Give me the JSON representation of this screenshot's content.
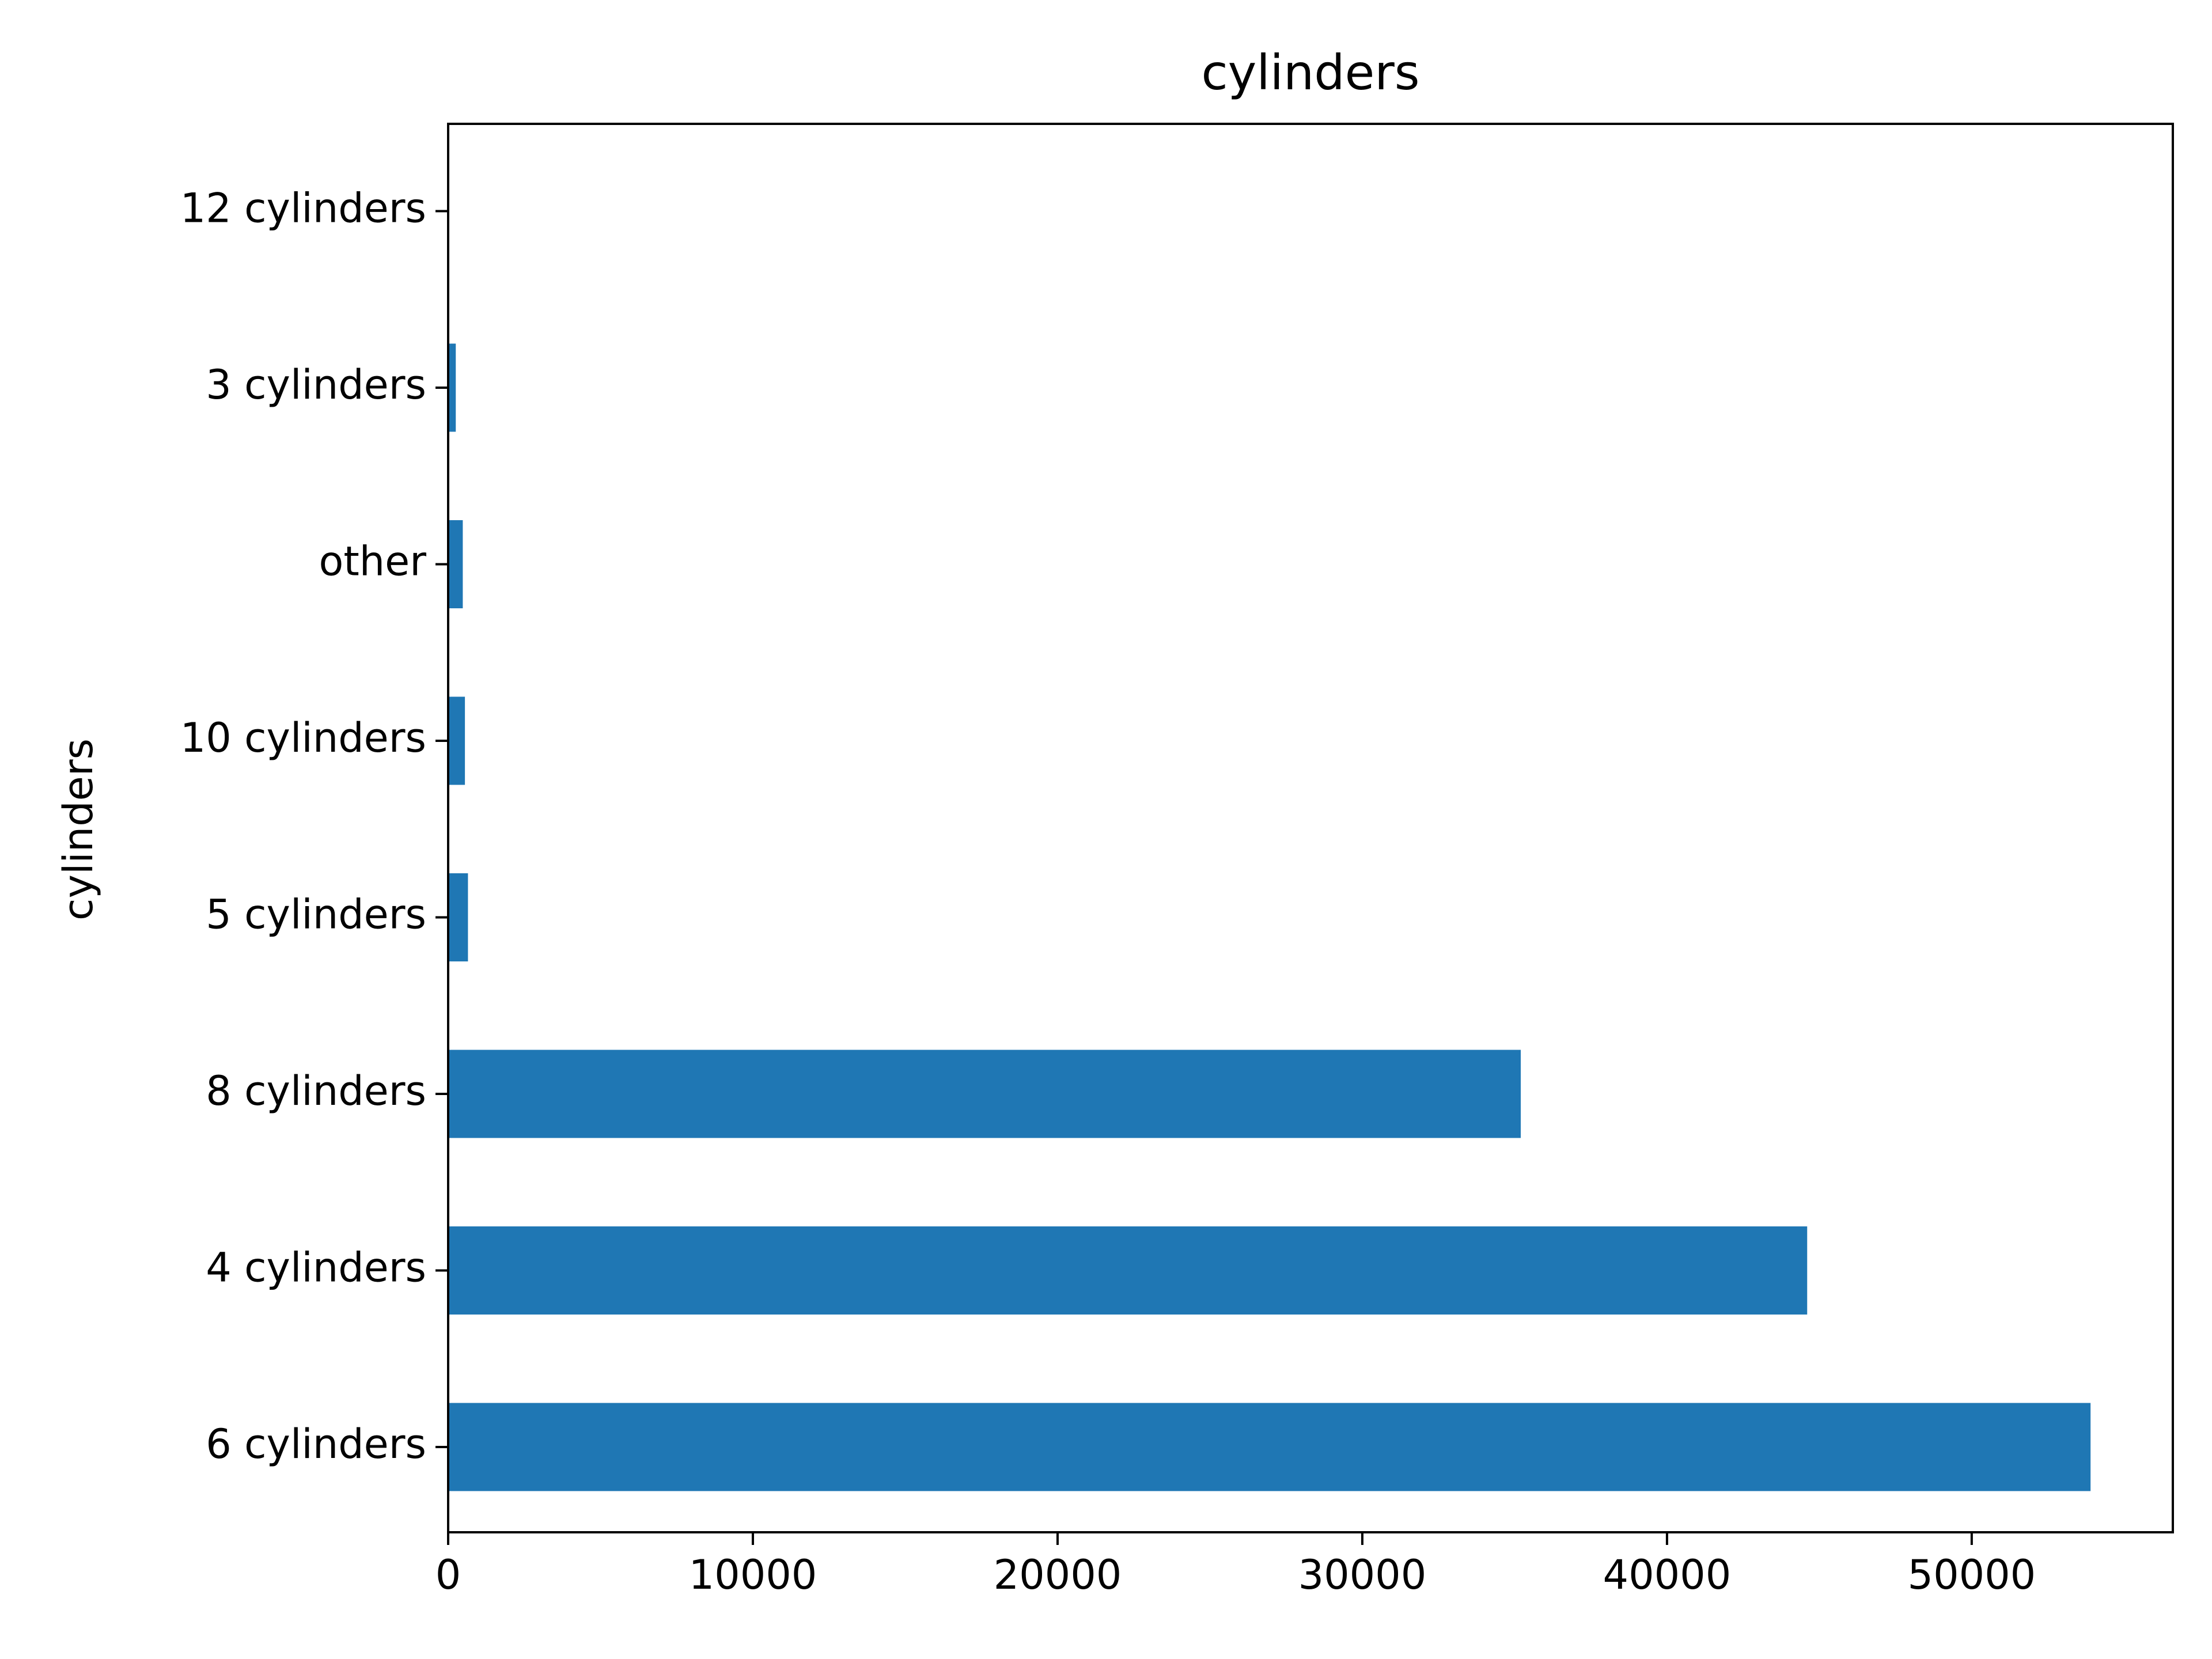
{
  "chart_data": {
    "type": "bar",
    "orientation": "horizontal",
    "title": "cylinders",
    "xlabel": "",
    "ylabel": "cylinders",
    "categories": [
      "6 cylinders",
      "4 cylinders",
      "8 cylinders",
      "5 cylinders",
      "10 cylinders",
      "other",
      "3 cylinders",
      "12 cylinders"
    ],
    "values": [
      53900,
      44600,
      35200,
      650,
      550,
      480,
      250,
      25
    ],
    "xlim": [
      0,
      56600
    ],
    "xticks": [
      0,
      10000,
      20000,
      30000,
      40000,
      50000
    ],
    "xtick_labels": [
      "0",
      "10000",
      "20000",
      "30000",
      "40000",
      "50000"
    ],
    "grid": false,
    "bar_color": "#1f77b4"
  }
}
